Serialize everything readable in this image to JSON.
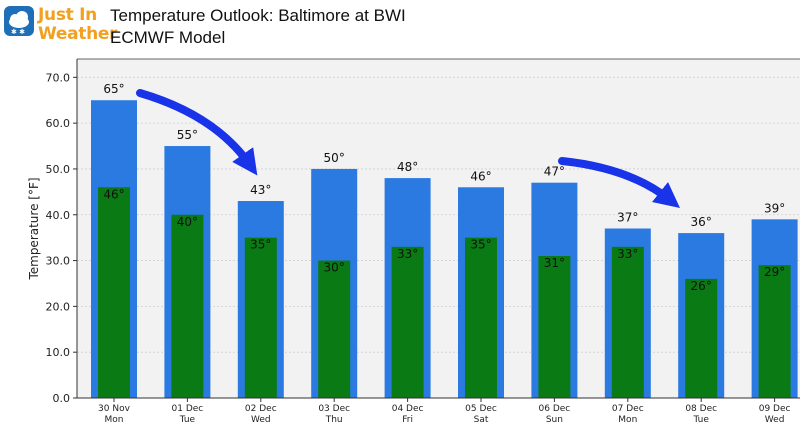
{
  "logo": {
    "line1": "Just In",
    "line2": "Weather"
  },
  "header": {
    "title": "Temperature Outlook: Baltimore at BWI",
    "subtitle": "ECMWF Model"
  },
  "colors": {
    "high_bar": "#2a7ae2",
    "low_bar": "#0a7a14",
    "plot_bg": "#f2f2f2",
    "arrow": "#1833e8",
    "logo_text": "#f2a020"
  },
  "chart_data": {
    "type": "bar",
    "ylabel": "Temperature [°F]",
    "ylim": [
      0,
      74
    ],
    "yticks": [
      "0.0",
      "10.0",
      "20.0",
      "30.0",
      "40.0",
      "50.0",
      "60.0",
      "70.0"
    ],
    "grid": true,
    "categories": [
      {
        "date": "30 Nov",
        "day": "Mon"
      },
      {
        "date": "01 Dec",
        "day": "Tue"
      },
      {
        "date": "02 Dec",
        "day": "Wed"
      },
      {
        "date": "03 Dec",
        "day": "Thu"
      },
      {
        "date": "04 Dec",
        "day": "Fri"
      },
      {
        "date": "05 Dec",
        "day": "Sat"
      },
      {
        "date": "06 Dec",
        "day": "Sun"
      },
      {
        "date": "07 Dec",
        "day": "Mon"
      },
      {
        "date": "08 Dec",
        "day": "Tue"
      },
      {
        "date": "09 Dec",
        "day": "Wed"
      }
    ],
    "series": [
      {
        "values": [
          65,
          55,
          43,
          50,
          48,
          46,
          47,
          37,
          36,
          39
        ],
        "labels": [
          "65°",
          "55°",
          "43°",
          "50°",
          "48°",
          "46°",
          "47°",
          "37°",
          "36°",
          "39°"
        ]
      },
      {
        "values": [
          46,
          40,
          35,
          30,
          33,
          35,
          31,
          33,
          26,
          29
        ],
        "labels": [
          "46°",
          "40°",
          "35°",
          "30°",
          "33°",
          "35°",
          "31°",
          "33°",
          "26°",
          "29°"
        ]
      }
    ]
  }
}
